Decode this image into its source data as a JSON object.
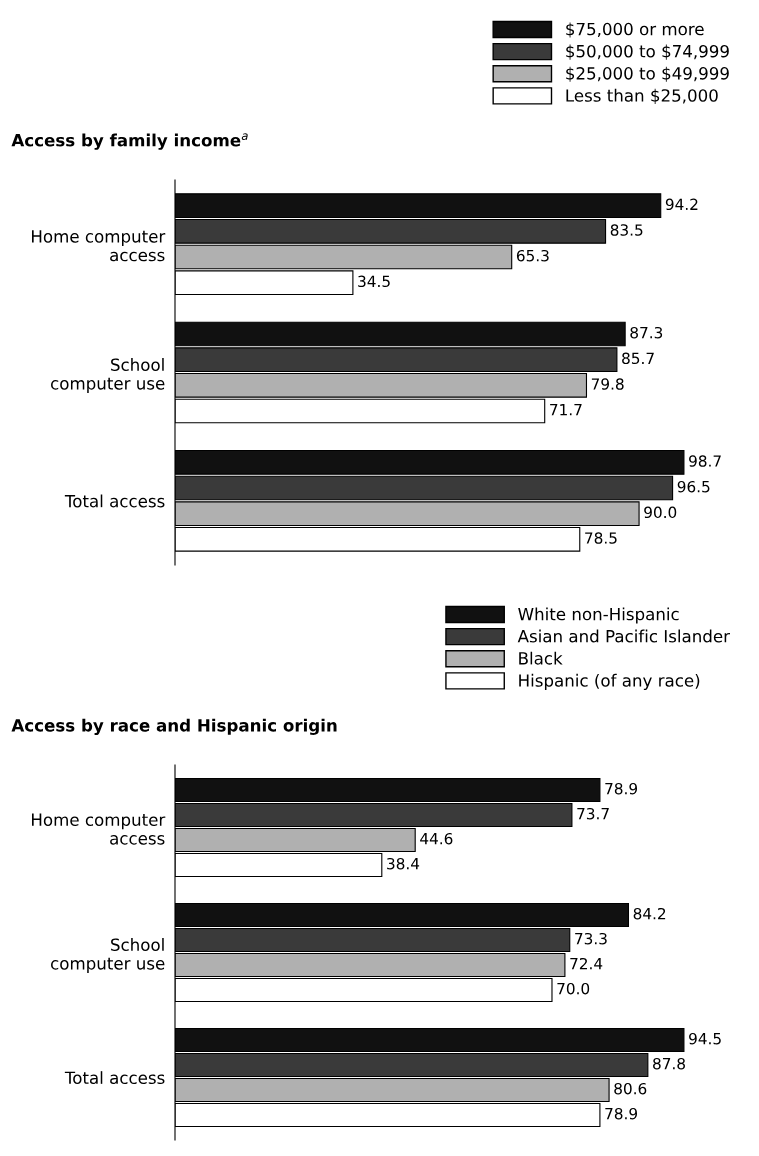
{
  "chart_data": [
    {
      "type": "bar",
      "orientation": "horizontal",
      "title": "Access by family income$^{a}$",
      "categories": [
        "Home computer\naccess",
        "School\ncomputer use",
        "Total access"
      ],
      "legend": "top right",
      "tick_labels": "y",
      "grid": false,
      "series": [
        {
          "name": "$75,000 or more",
          "color": "#111111",
          "values": [
            94.2,
            87.3,
            98.7
          ],
          "value_labels": [
            "94.2",
            "87.3",
            "98.7"
          ]
        },
        {
          "name": "$50,000 to $74,999",
          "color": "#3a3a3a",
          "values": [
            83.5,
            85.7,
            96.5
          ],
          "value_labels": [
            "83.5",
            "85.7",
            "96.5"
          ]
        },
        {
          "name": "$25,000 to $49,999",
          "color": "#b0b0b0",
          "values": [
            65.3,
            79.8,
            90.0
          ],
          "value_labels": [
            "65.3",
            "79.8",
            "90.0"
          ]
        },
        {
          "name": "Less than $25,000",
          "color": "#ffffff",
          "values": [
            34.5,
            71.7,
            78.5
          ],
          "value_labels": [
            "34.5",
            "71.7",
            "78.5"
          ]
        }
      ]
    },
    {
      "type": "bar",
      "orientation": "horizontal",
      "title": "Access by race and Hispanic origin",
      "categories": [
        "Home computer\naccess",
        "School\ncomputer use",
        "Total access"
      ],
      "legend": "top right",
      "tick_labels": "y",
      "grid": false,
      "series": [
        {
          "name": "White non-Hispanic",
          "color": "#111111",
          "values": [
            78.9,
            84.2,
            94.5
          ],
          "value_labels": [
            "78.9",
            "84.2",
            "94.5"
          ]
        },
        {
          "name": "Asian and Pacific Islander",
          "color": "#3a3a3a",
          "values": [
            73.7,
            73.3,
            87.8
          ],
          "value_labels": [
            "73.7",
            "73.3",
            "87.8"
          ]
        },
        {
          "name": "Black",
          "color": "#b0b0b0",
          "values": [
            44.6,
            72.4,
            80.6
          ],
          "value_labels": [
            "44.6",
            "72.4",
            "80.6"
          ]
        },
        {
          "name": "Hispanic (of any race)",
          "color": "#ffffff",
          "values": [
            38.4,
            70.0,
            78.9
          ],
          "value_labels": [
            "38.4",
            "70.0",
            "78.9"
          ]
        }
      ]
    }
  ]
}
